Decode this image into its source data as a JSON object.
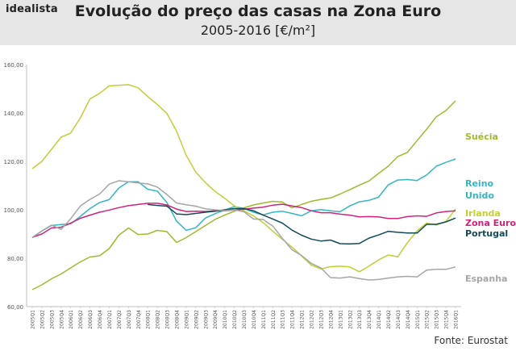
{
  "header": {
    "brand": "idealista",
    "title": "Evolução do preço das casas na Zona Euro",
    "subtitle": "2005-2016 [€/m²]"
  },
  "source": "Fonte: Eurostat",
  "colors": {
    "background_header": "#e6e6e6",
    "Suécia": "#a3b92c",
    "Reino Unido": "#35b6c3",
    "Irlanda": "#c2cf33",
    "Zona Euro": "#d0237b",
    "Portugal": "#134a57",
    "Espanha": "#a6a6a6"
  },
  "chart_data": {
    "type": "line",
    "title": "Evolução do preço das casas na Zona Euro",
    "subtitle": "2005-2016 [€/m²]",
    "xlabel": "",
    "ylabel": "",
    "ylim": [
      60,
      160
    ],
    "yticks": [
      "60,00",
      "80,00",
      "100,00",
      "120,00",
      "140,00",
      "160,00"
    ],
    "grid": false,
    "legend": "right, labels beside line ends",
    "categories": [
      "2005Q1",
      "2005Q2",
      "2005Q3",
      "2005Q4",
      "2006Q1",
      "2006Q2",
      "2006Q3",
      "2006Q4",
      "2007Q1",
      "2007Q2",
      "2007Q3",
      "2007Q4",
      "2008Q1",
      "2008Q2",
      "2008Q3",
      "2008Q4",
      "2009Q1",
      "2009Q2",
      "2009Q3",
      "2009Q4",
      "2010Q1",
      "2010Q2",
      "2010Q3",
      "2010Q4",
      "2011Q1",
      "2011Q2",
      "2011Q3",
      "2011Q4",
      "2012Q1",
      "2012Q2",
      "2012Q3",
      "2012Q4",
      "2013Q1",
      "2013Q2",
      "2013Q3",
      "2013Q4",
      "2014Q1",
      "2014Q2",
      "2014Q3",
      "2014Q4",
      "2015Q1",
      "2015Q2",
      "2015Q3",
      "2015Q4",
      "2016Q1"
    ],
    "series": [
      {
        "name": "Suécia",
        "label_lines": [
          "Suécia"
        ],
        "color": "#a3b92c",
        "values": [
          67,
          69,
          71.5,
          73.5,
          76,
          78.5,
          80.5,
          81,
          84,
          89.5,
          92.5,
          89.8,
          90,
          91.5,
          91,
          86.5,
          88.5,
          91,
          93.5,
          96,
          97.8,
          99.4,
          100.8,
          102,
          102.8,
          103.5,
          103.2,
          100.8,
          102.2,
          103.5,
          104.3,
          104.9,
          106.5,
          108.3,
          110.2,
          111.9,
          115,
          118,
          122,
          123.7,
          128.6,
          133.3,
          138.4,
          141,
          145
        ]
      },
      {
        "name": "Reino Unido",
        "label_lines": [
          "Reino",
          "Unido"
        ],
        "color": "#35b6c3",
        "values": [
          88.5,
          91.2,
          93.5,
          93.9,
          94.2,
          97.3,
          100.5,
          103,
          104.2,
          109,
          111.6,
          111.6,
          108.5,
          107.7,
          103,
          95.3,
          91.5,
          92.6,
          96.6,
          98.4,
          99.9,
          101.3,
          100.6,
          99,
          97.9,
          99,
          99.4,
          98.5,
          97.5,
          99.6,
          100.1,
          99.6,
          99.2,
          101.6,
          103.3,
          103.9,
          105.2,
          110.3,
          112.3,
          112.5,
          112.1,
          114.4,
          118,
          119.6,
          121
        ]
      },
      {
        "name": "Irlanda",
        "label_lines": [
          "Irlanda"
        ],
        "color": "#c2cf33",
        "values": [
          117,
          120,
          125,
          130,
          131.7,
          138,
          145.8,
          148.1,
          151.2,
          151.4,
          151.7,
          150.4,
          146.8,
          143.5,
          139.8,
          132.5,
          122.5,
          115.6,
          111.2,
          107.6,
          104.8,
          101.6,
          99.6,
          97.5,
          94.7,
          91.2,
          87.8,
          84.6,
          80.9,
          77.2,
          75.6,
          76.5,
          76.7,
          76.4,
          74.4,
          76.7,
          79.3,
          81.3,
          80.6,
          86.4,
          91.3,
          94.5,
          93.7,
          95.2,
          100.3
        ]
      },
      {
        "name": "Zona Euro",
        "label_lines": [
          "Zona Euro"
        ],
        "color": "#d0237b",
        "values": [
          88.6,
          90,
          92.5,
          92.8,
          94.5,
          96.5,
          97.8,
          99,
          99.9,
          100.9,
          101.7,
          102.2,
          102.7,
          102.7,
          102,
          100.3,
          99.3,
          99.4,
          99.3,
          99.6,
          99.6,
          99.9,
          100.2,
          100.7,
          101.1,
          101.9,
          102.3,
          101.6,
          100.9,
          99.6,
          98.8,
          98.8,
          98.2,
          97.8,
          97.1,
          97.2,
          97.1,
          96.4,
          96.4,
          97.2,
          97.5,
          97.3,
          98.7,
          99.3,
          99.6
        ]
      },
      {
        "name": "Portugal",
        "label_lines": [
          "Portugal"
        ],
        "color": "#134a57",
        "values": [
          null,
          null,
          null,
          null,
          null,
          null,
          null,
          null,
          null,
          null,
          null,
          null,
          102.2,
          101.8,
          101.5,
          98.3,
          98,
          98.5,
          99,
          99.4,
          100,
          100.5,
          100.5,
          99.6,
          97.8,
          96.2,
          94.5,
          91.6,
          89.5,
          87.9,
          87.1,
          87.5,
          86,
          85.9,
          86.1,
          88.3,
          89.6,
          91.1,
          90.7,
          90.4,
          90.4,
          94,
          94,
          95,
          96.6
        ]
      },
      {
        "name": "Espanha",
        "label_lines": [
          "Espanha"
        ],
        "color": "#a6a6a6",
        "values": [
          88.6,
          91.3,
          93.7,
          91.9,
          96.3,
          101.6,
          104.3,
          106.5,
          110.6,
          112,
          111.6,
          111.1,
          110.7,
          109.4,
          106.3,
          102.8,
          102.1,
          101.5,
          100.4,
          100,
          99.7,
          100,
          99.2,
          96.2,
          96,
          93.3,
          88.2,
          83.5,
          81.1,
          77.9,
          76,
          72,
          71.8,
          72.3,
          71.6,
          71,
          71.2,
          71.8,
          72.3,
          72.5,
          72.3,
          75.1,
          75.4,
          75.4,
          76.4
        ]
      }
    ]
  }
}
